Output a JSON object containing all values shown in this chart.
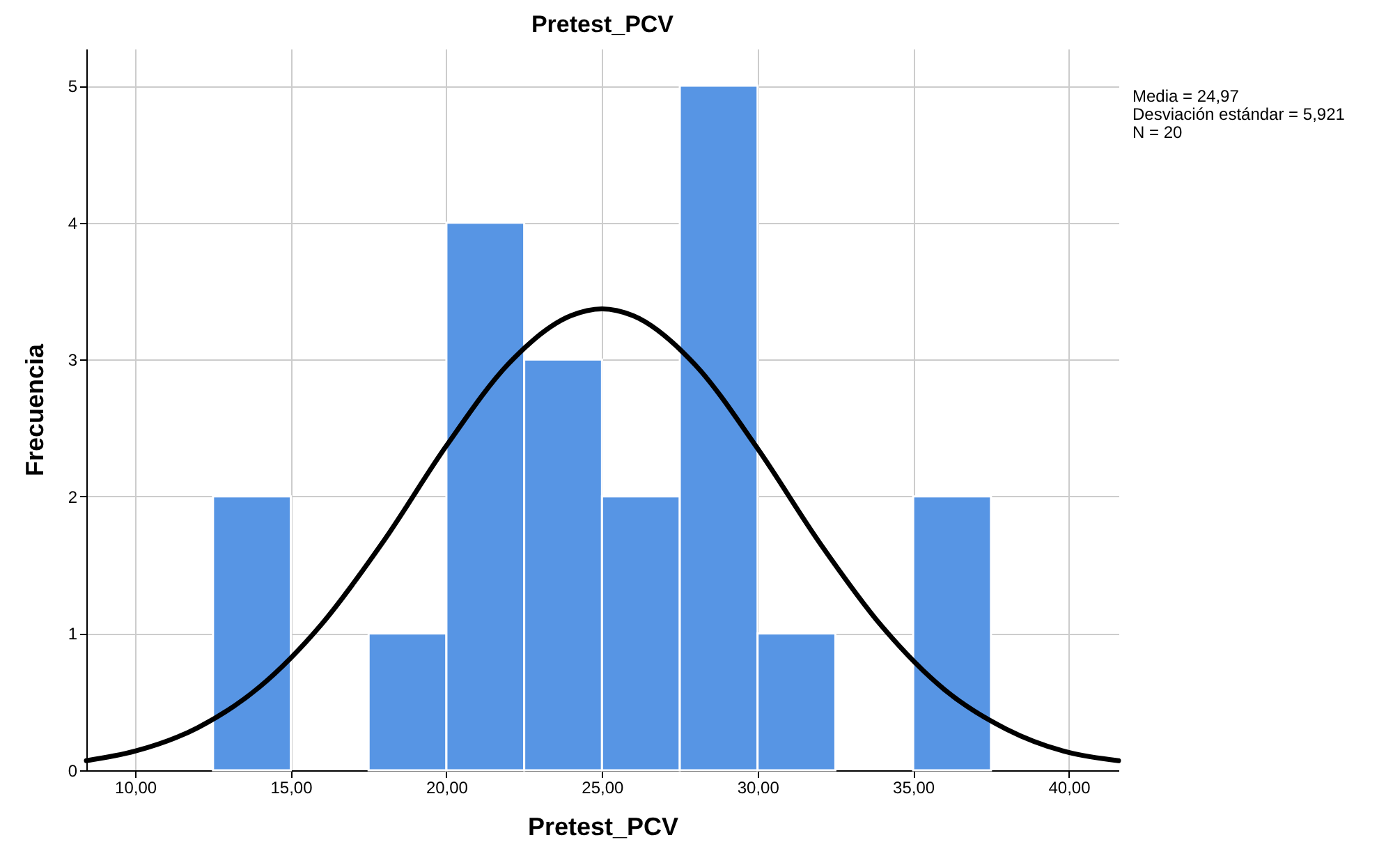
{
  "chart_data": {
    "type": "histogram",
    "title": "Pretest_PCV",
    "xlabel": "Pretest_PCV",
    "ylabel": "Frecuencia",
    "bins": [
      12.5,
      15,
      17.5,
      20,
      22.5,
      25,
      27.5,
      30,
      32.5,
      35,
      37.5
    ],
    "values": [
      2,
      0,
      1,
      4,
      3,
      2,
      5,
      1,
      0,
      2
    ],
    "color": "#5795e4",
    "series": [
      {
        "type": "line",
        "color": "#000000",
        "x": [
          8.43,
          10,
          12,
          14,
          16,
          18,
          20,
          22,
          24,
          25,
          26,
          28,
          30,
          32,
          34,
          36,
          38,
          40,
          41.6
        ],
        "values": [
          0.07,
          0.14,
          0.31,
          0.61,
          1.07,
          1.68,
          2.37,
          2.97,
          3.32,
          3.37,
          3.32,
          2.96,
          2.35,
          1.66,
          1.05,
          0.59,
          0.3,
          0.13,
          0.07
        ]
      }
    ],
    "xlim": [
      8.43,
      41.6
    ],
    "ylim": [
      0,
      5.27
    ],
    "xticks": [
      {
        "value": 10,
        "label": "10,00"
      },
      {
        "value": 15,
        "label": "15,00"
      },
      {
        "value": 20,
        "label": "20,00"
      },
      {
        "value": 25,
        "label": "25,00"
      },
      {
        "value": 30,
        "label": "30,00"
      },
      {
        "value": 35,
        "label": "35,00"
      },
      {
        "value": 40,
        "label": "40,00"
      }
    ],
    "yticks": [
      0,
      1,
      2,
      3,
      4,
      5
    ],
    "grid": true,
    "line_style": "solid",
    "annotations": [
      "Media = 24,97",
      "Desviación estándar = 5,921",
      "N = 20"
    ]
  }
}
